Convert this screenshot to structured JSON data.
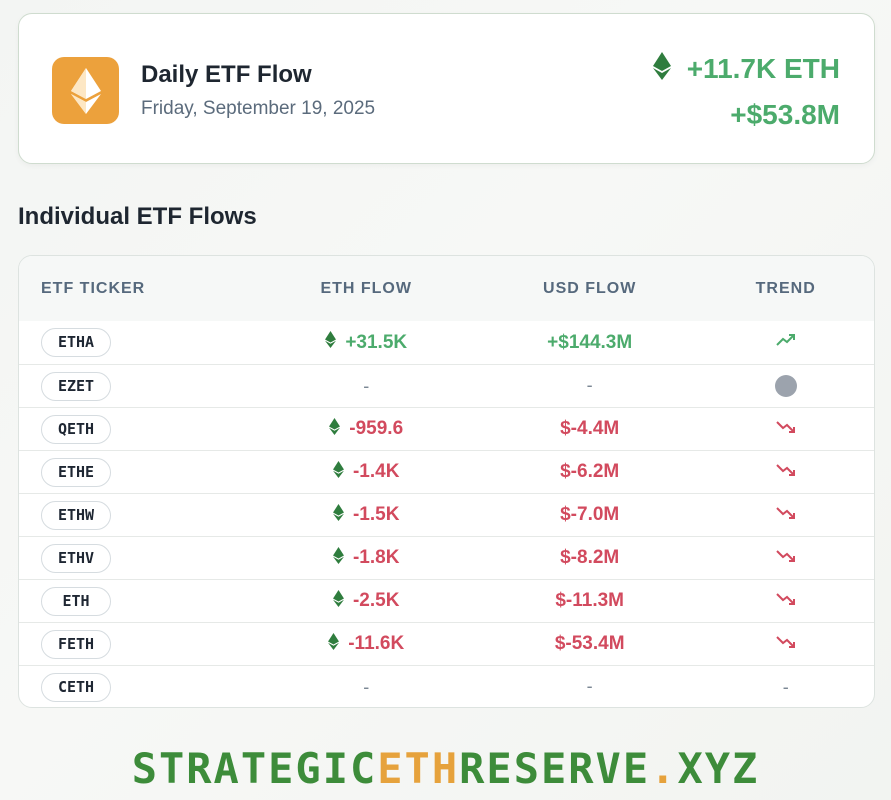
{
  "header": {
    "title": "Daily ETF Flow",
    "date": "Friday, September 19, 2025",
    "total_eth": "+11.7K ETH",
    "total_usd": "+$53.8M"
  },
  "section_title": "Individual ETF Flows",
  "table": {
    "headers": [
      "ETF TICKER",
      "ETH FLOW",
      "USD FLOW",
      "TREND"
    ],
    "rows": [
      {
        "ticker": "ETHA",
        "eth_flow": "+31.5K",
        "usd_flow": "+$144.3M",
        "trend": "up",
        "sign": "pos"
      },
      {
        "ticker": "EZET",
        "eth_flow": "-",
        "usd_flow": "-",
        "trend": "neutral",
        "sign": "none"
      },
      {
        "ticker": "QETH",
        "eth_flow": "-959.6",
        "usd_flow": "$-4.4M",
        "trend": "down",
        "sign": "neg"
      },
      {
        "ticker": "ETHE",
        "eth_flow": "-1.4K",
        "usd_flow": "$-6.2M",
        "trend": "down",
        "sign": "neg"
      },
      {
        "ticker": "ETHW",
        "eth_flow": "-1.5K",
        "usd_flow": "$-7.0M",
        "trend": "down",
        "sign": "neg"
      },
      {
        "ticker": "ETHV",
        "eth_flow": "-1.8K",
        "usd_flow": "$-8.2M",
        "trend": "down",
        "sign": "neg"
      },
      {
        "ticker": "ETH",
        "eth_flow": "-2.5K",
        "usd_flow": "$-11.3M",
        "trend": "down",
        "sign": "neg"
      },
      {
        "ticker": "FETH",
        "eth_flow": "-11.6K",
        "usd_flow": "$-53.4M",
        "trend": "down",
        "sign": "neg"
      },
      {
        "ticker": "CETH",
        "eth_flow": "-",
        "usd_flow": "-",
        "trend": "-",
        "sign": "none"
      }
    ]
  },
  "footer": {
    "part1": "STRATEGIC",
    "part2": "ETH",
    "part3": "RESERVE",
    "part4": ".",
    "part5": "XYZ"
  },
  "colors": {
    "positive": "#4cab6c",
    "negative": "#d24a5e",
    "eth_logo_bg": "#eca13c",
    "eth_icon": "#2f7d3e"
  },
  "icons": {
    "logo": "ethereum-logo-icon",
    "eth": "ethereum-icon",
    "trend_up": "trending-up-icon",
    "trend_down": "trending-down-icon",
    "trend_neutral": "neutral-dot-icon"
  }
}
